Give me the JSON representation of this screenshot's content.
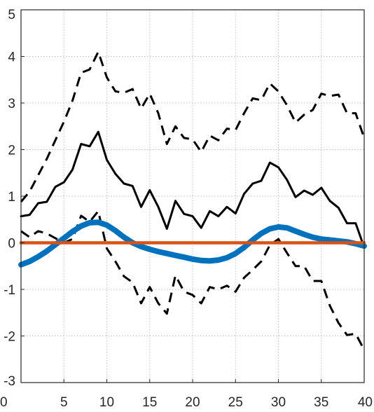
{
  "chart_data": {
    "type": "line",
    "title": "",
    "xlabel": "",
    "ylabel": "",
    "xlim": [
      0,
      40
    ],
    "ylim": [
      -3,
      5
    ],
    "xticks": [
      0,
      5,
      10,
      15,
      20,
      25,
      30,
      35,
      40
    ],
    "yticks": [
      -3,
      -2,
      -1,
      0,
      1,
      2,
      3,
      4,
      5
    ],
    "grid": true,
    "legend": "none",
    "x": [
      0,
      1,
      2,
      3,
      4,
      5,
      6,
      7,
      8,
      9,
      10,
      11,
      12,
      13,
      14,
      15,
      16,
      17,
      18,
      19,
      20,
      21,
      22,
      23,
      24,
      25,
      26,
      27,
      28,
      29,
      30,
      31,
      32,
      33,
      34,
      35,
      36,
      37,
      38,
      39,
      40
    ],
    "series": [
      {
        "style": "solid-black",
        "color": "#000000",
        "values": [
          0.57,
          0.6,
          0.85,
          0.88,
          1.2,
          1.3,
          1.57,
          2.12,
          2.07,
          2.38,
          1.78,
          1.48,
          1.27,
          1.22,
          0.77,
          1.13,
          0.77,
          0.3,
          0.9,
          0.62,
          0.57,
          0.32,
          0.68,
          0.57,
          0.77,
          0.63,
          1.05,
          1.27,
          1.33,
          1.72,
          1.62,
          1.35,
          0.98,
          1.12,
          1.03,
          1.18,
          0.9,
          0.75,
          0.42,
          0.42,
          -0.1
        ]
      },
      {
        "style": "upper-dashed-black",
        "color": "#000000",
        "values": [
          0.88,
          1.1,
          1.45,
          1.8,
          2.2,
          2.6,
          3.05,
          3.65,
          3.72,
          4.1,
          3.55,
          3.25,
          3.22,
          3.3,
          2.88,
          3.2,
          2.78,
          2.12,
          2.5,
          2.25,
          2.22,
          1.95,
          2.3,
          2.2,
          2.45,
          2.42,
          2.78,
          3.1,
          3.06,
          3.42,
          3.25,
          2.95,
          2.58,
          2.75,
          2.85,
          3.2,
          3.15,
          3.18,
          2.78,
          2.78,
          2.25
        ]
      },
      {
        "style": "lower-dashed-black",
        "color": "#000000",
        "values": [
          0.25,
          0.12,
          0.25,
          0.2,
          0.1,
          0.0,
          0.08,
          0.58,
          0.45,
          0.68,
          -0.12,
          -0.4,
          -0.72,
          -0.85,
          -1.3,
          -0.95,
          -1.3,
          -1.52,
          -0.7,
          -1.05,
          -1.12,
          -1.3,
          -0.95,
          -1.0,
          -0.92,
          -1.05,
          -0.75,
          -0.58,
          -0.4,
          -0.05,
          0.08,
          -0.22,
          -0.5,
          -0.5,
          -0.82,
          -0.82,
          -1.35,
          -1.72,
          -1.98,
          -1.95,
          -2.3
        ]
      },
      {
        "style": "thick-blue",
        "color": "#0072BD",
        "values": [
          -0.47,
          -0.4,
          -0.3,
          -0.18,
          -0.04,
          0.1,
          0.24,
          0.36,
          0.43,
          0.44,
          0.38,
          0.26,
          0.12,
          0.0,
          -0.08,
          -0.14,
          -0.19,
          -0.23,
          -0.27,
          -0.31,
          -0.35,
          -0.38,
          -0.39,
          -0.37,
          -0.32,
          -0.23,
          -0.1,
          0.06,
          0.2,
          0.3,
          0.34,
          0.32,
          0.25,
          0.18,
          0.12,
          0.08,
          0.06,
          0.04,
          0.02,
          -0.02,
          -0.07
        ]
      },
      {
        "style": "zero-line-orange",
        "color": "#D95319",
        "values": [
          0,
          0,
          0,
          0,
          0,
          0,
          0,
          0,
          0,
          0,
          0,
          0,
          0,
          0,
          0,
          0,
          0,
          0,
          0,
          0,
          0,
          0,
          0,
          0,
          0,
          0,
          0,
          0,
          0,
          0,
          0,
          0,
          0,
          0,
          0,
          0,
          0,
          0,
          0,
          0,
          0
        ]
      }
    ]
  }
}
